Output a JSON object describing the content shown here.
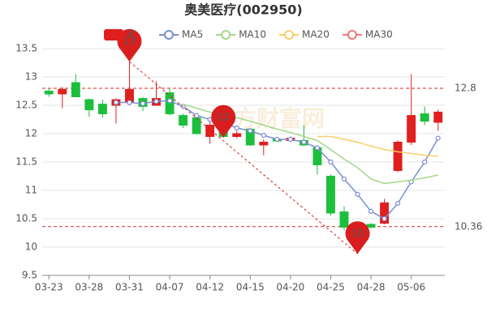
{
  "chart_data": {
    "type": "candlestick",
    "title": "奥美医疗(002950)",
    "watermark": "东方财富网",
    "categories": [
      "03-23",
      null,
      null,
      "03-28",
      null,
      null,
      "03-31",
      null,
      null,
      "04-07",
      null,
      null,
      "04-12",
      null,
      null,
      "04-15",
      null,
      null,
      "04-20",
      null,
      null,
      "04-25",
      null,
      null,
      "04-28",
      null,
      null,
      "05-06",
      null,
      null
    ],
    "candles": {
      "name": "K",
      "up_color": "#e01f1f",
      "down_color": "#1cbf3c",
      "open": [
        12.75,
        12.7,
        12.9,
        12.6,
        12.52,
        12.5,
        12.55,
        12.62,
        12.5,
        12.72,
        12.32,
        12.28,
        11.95,
        12.22,
        11.95,
        12.08,
        11.8,
        11.9,
        11.88,
        11.88,
        11.75,
        11.25,
        10.62,
        10.38,
        10.4,
        10.42,
        11.35,
        11.85,
        12.35,
        12.2
      ],
      "close": [
        12.7,
        12.78,
        12.65,
        12.42,
        12.35,
        12.6,
        12.78,
        12.48,
        12.62,
        12.35,
        12.15,
        12.0,
        12.15,
        11.95,
        12.0,
        11.8,
        11.85,
        11.87,
        11.92,
        11.8,
        11.45,
        10.6,
        10.35,
        10.3,
        10.35,
        10.78,
        11.85,
        12.32,
        12.22,
        12.38
      ],
      "high": [
        12.8,
        12.82,
        13.05,
        12.62,
        12.6,
        12.62,
        13.27,
        12.65,
        12.92,
        12.8,
        12.35,
        12.32,
        12.22,
        12.28,
        12.05,
        12.1,
        11.9,
        11.92,
        11.95,
        12.15,
        11.78,
        11.28,
        10.72,
        10.4,
        10.42,
        10.85,
        11.88,
        13.05,
        12.48,
        12.42
      ],
      "low": [
        12.65,
        12.45,
        12.65,
        12.3,
        12.28,
        12.18,
        12.5,
        12.4,
        12.5,
        12.32,
        12.1,
        11.98,
        11.82,
        11.93,
        11.92,
        11.78,
        11.62,
        11.85,
        11.85,
        11.78,
        11.28,
        10.55,
        10.3,
        9.88,
        10.33,
        10.4,
        11.32,
        11.8,
        12.15,
        12.05
      ]
    },
    "series": [
      {
        "name": "MA5",
        "color": "#7b8fd0",
        "markers": true,
        "values": [
          null,
          null,
          null,
          null,
          null,
          12.55,
          12.55,
          12.53,
          12.57,
          12.58,
          12.48,
          12.32,
          12.25,
          12.2,
          12.1,
          12.05,
          11.97,
          11.9,
          11.9,
          11.85,
          11.75,
          11.5,
          11.2,
          10.93,
          10.63,
          10.5,
          10.77,
          11.15,
          11.5,
          11.92
        ]
      },
      {
        "name": "MA10",
        "color": "#a5d88a",
        "markers": false,
        "values": [
          null,
          null,
          null,
          null,
          null,
          null,
          null,
          null,
          null,
          null,
          12.52,
          12.45,
          12.38,
          12.3,
          12.28,
          12.22,
          12.15,
          12.08,
          12.02,
          11.95,
          11.88,
          11.72,
          11.55,
          11.4,
          11.2,
          11.12,
          11.15,
          11.18,
          11.22,
          11.27
        ]
      },
      {
        "name": "MA20",
        "color": "#f7cf6b",
        "markers": false,
        "values": [
          null,
          null,
          null,
          null,
          null,
          null,
          null,
          null,
          null,
          null,
          null,
          null,
          null,
          null,
          null,
          null,
          null,
          null,
          null,
          null,
          11.95,
          11.95,
          11.9,
          11.85,
          11.78,
          11.72,
          11.68,
          11.65,
          11.62,
          11.6
        ]
      },
      {
        "name": "MA30",
        "color": "#ee7777",
        "markers": false,
        "values": [
          null,
          null,
          null,
          null,
          null,
          null,
          null,
          null,
          null,
          null,
          null,
          null,
          null,
          null,
          null,
          null,
          null,
          null,
          null,
          null,
          null,
          null,
          null,
          null,
          null,
          null,
          null,
          null,
          null,
          null
        ]
      }
    ],
    "ref_lines": [
      12.8,
      10.36
    ],
    "ref_color": "#d42a2a",
    "annotations": [
      {
        "value": 13.27,
        "label": "13"
      },
      {
        "value": 11.93,
        "label": "12"
      },
      {
        "value": 9.88,
        "label": "10"
      }
    ],
    "annotation_color": "#d81e1e",
    "ylim": [
      9.5,
      13.5
    ],
    "yticks": [
      9.5,
      10,
      10.5,
      11,
      11.5,
      12,
      12.5,
      13,
      13.5
    ],
    "grid": true
  }
}
